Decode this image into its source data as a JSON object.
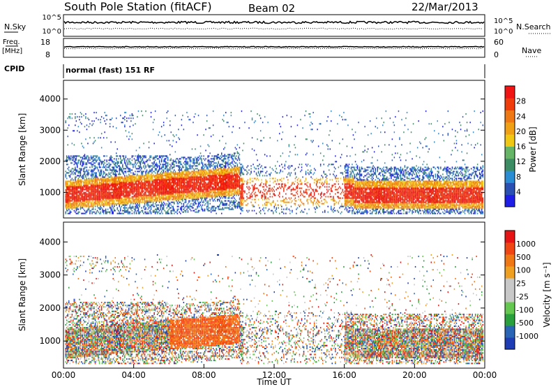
{
  "header": {
    "station": "South Pole Station (fitACF)",
    "beam": "Beam 02",
    "date": "22/Mar/2013"
  },
  "top_panels": {
    "nsky_label": "N.Sky",
    "nsky_ticks": [
      "10^5",
      "10^0"
    ],
    "nsearch_label": "N.Search",
    "nsearch_ticks": [
      "10^5",
      "10^0"
    ],
    "freq_label": "Freq.",
    "freq_unit": "[MHz]",
    "freq_ticks": [
      "18",
      "8"
    ],
    "nave_label": "Nave",
    "nave_ticks": [
      "60",
      "0"
    ],
    "cpid_label": "CPID",
    "cpid_text": "normal (fast) 151 RF"
  },
  "colors": {
    "power_scale": [
      "#1e1ee6",
      "#2a50b4",
      "#2a8cd2",
      "#3c8c64",
      "#66b466",
      "#f0c814",
      "#f0a014",
      "#f07814",
      "#f03c0a",
      "#f01414"
    ],
    "velocity_scale": [
      "#1e3cb4",
      "#2a64b4",
      "#2aa03c",
      "#64c850",
      "#c8c8c8",
      "#c8c8c8",
      "#f0a020",
      "#f07814",
      "#f04614",
      "#e61414"
    ]
  },
  "chart_data": [
    {
      "type": "heatmap",
      "name": "power",
      "xlabel": "Time UT",
      "ylabel": "Slant Range [km]",
      "x_ticks": [
        "00:00",
        "04:00",
        "08:00",
        "12:00",
        "16:00",
        "20:00",
        "00:00"
      ],
      "y_ticks": [
        "1000",
        "2000",
        "3000",
        "4000"
      ],
      "xlim": [
        0,
        24
      ],
      "ylim": [
        180,
        4600
      ],
      "colorbar_label": "Power [dB]",
      "colorbar_ticks": [
        "4",
        "8",
        "12",
        "16",
        "20",
        "24",
        "28"
      ],
      "colorbar_range": [
        0,
        30
      ]
    },
    {
      "type": "heatmap",
      "name": "velocity",
      "xlabel": "Time UT",
      "ylabel": "Slant Range [km]",
      "x_ticks": [
        "00:00",
        "04:00",
        "08:00",
        "12:00",
        "16:00",
        "20:00",
        "00:00"
      ],
      "y_ticks": [
        "1000",
        "2000",
        "3000",
        "4000"
      ],
      "xlim": [
        0,
        24
      ],
      "ylim": [
        180,
        4600
      ],
      "colorbar_label": "Velocity [m s⁻¹]",
      "colorbar_ticks": [
        "1000",
        "500",
        "100",
        "25",
        "-25",
        "-100",
        "-500",
        "-1000"
      ]
    }
  ]
}
